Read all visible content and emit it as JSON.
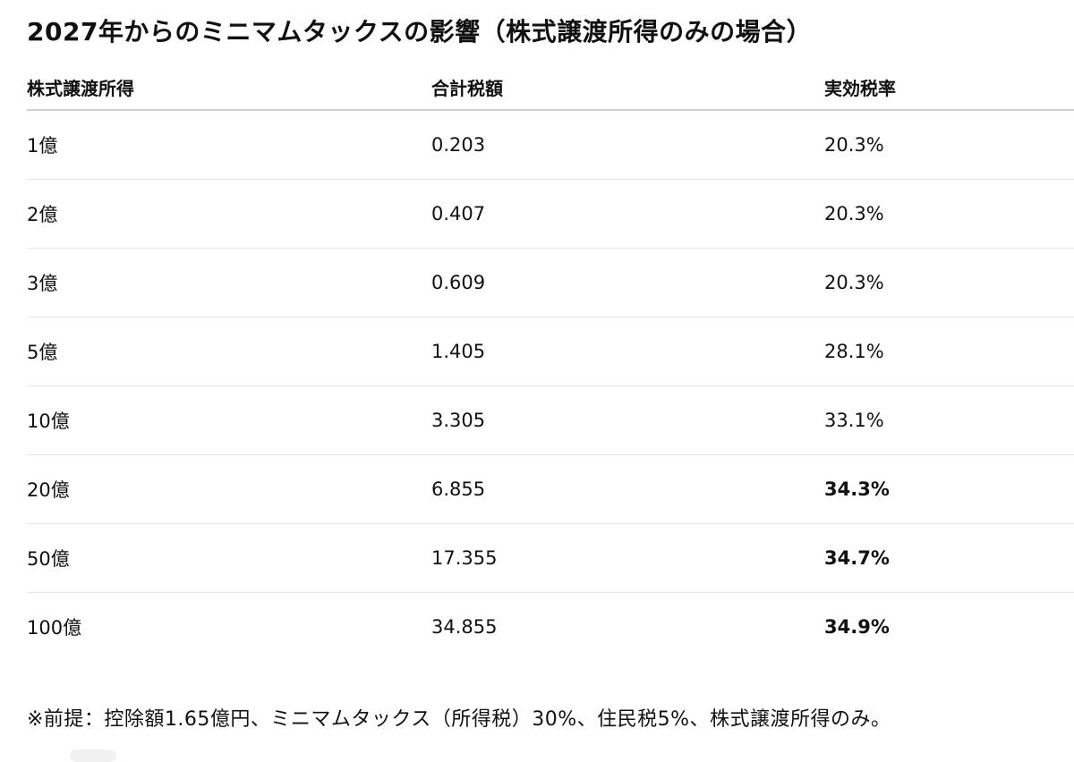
{
  "title": "2027年からのミニマムタックスの影響（株式譲渡所得のみの場合）",
  "table": {
    "headers": {
      "income": "株式譲渡所得",
      "tax": "合計税額",
      "rate": "実効税率"
    },
    "rows": [
      {
        "income": "1億",
        "tax": "0.203",
        "rate": "20.3%",
        "rate_bold": false
      },
      {
        "income": "2億",
        "tax": "0.407",
        "rate": "20.3%",
        "rate_bold": false
      },
      {
        "income": "3億",
        "tax": "0.609",
        "rate": "20.3%",
        "rate_bold": false
      },
      {
        "income": "5億",
        "tax": "1.405",
        "rate": "28.1%",
        "rate_bold": false
      },
      {
        "income": "10億",
        "tax": "3.305",
        "rate": "33.1%",
        "rate_bold": false
      },
      {
        "income": "20億",
        "tax": "6.855",
        "rate": "34.3%",
        "rate_bold": true
      },
      {
        "income": "50億",
        "tax": "17.355",
        "rate": "34.7%",
        "rate_bold": true
      },
      {
        "income": "100億",
        "tax": "34.855",
        "rate": "34.9%",
        "rate_bold": true
      }
    ]
  },
  "footnote": "※前提：控除額1.65億円、ミニマムタックス（所得税）30%、住民税5%、株式譲渡所得のみ。"
}
